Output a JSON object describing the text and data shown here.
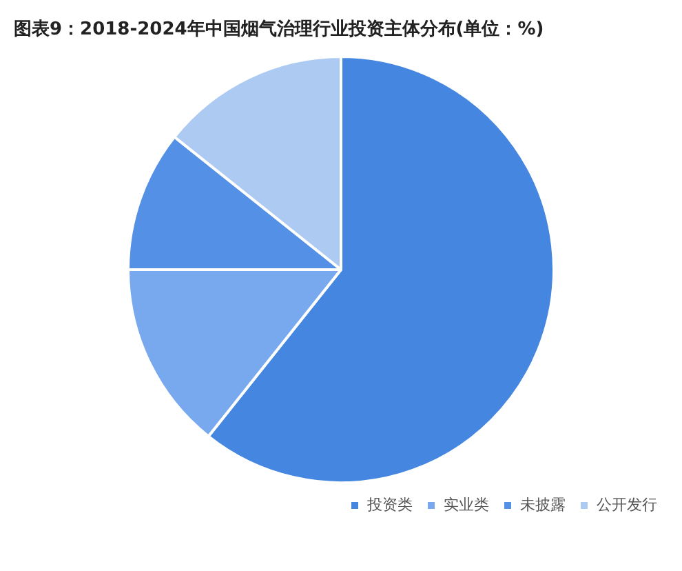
{
  "chart_data": {
    "type": "pie",
    "title": "图表9：2018-2024年中国烟气治理行业投资主体分布(单位：%)",
    "categories": [
      "投资类",
      "实业类",
      "未披露",
      "公开发行"
    ],
    "values": [
      60.7,
      14.3,
      10.7,
      14.3
    ],
    "colors": [
      "#4586e1",
      "#78a9ee",
      "#5390e6",
      "#adcaf3"
    ],
    "legend": "bottom"
  }
}
